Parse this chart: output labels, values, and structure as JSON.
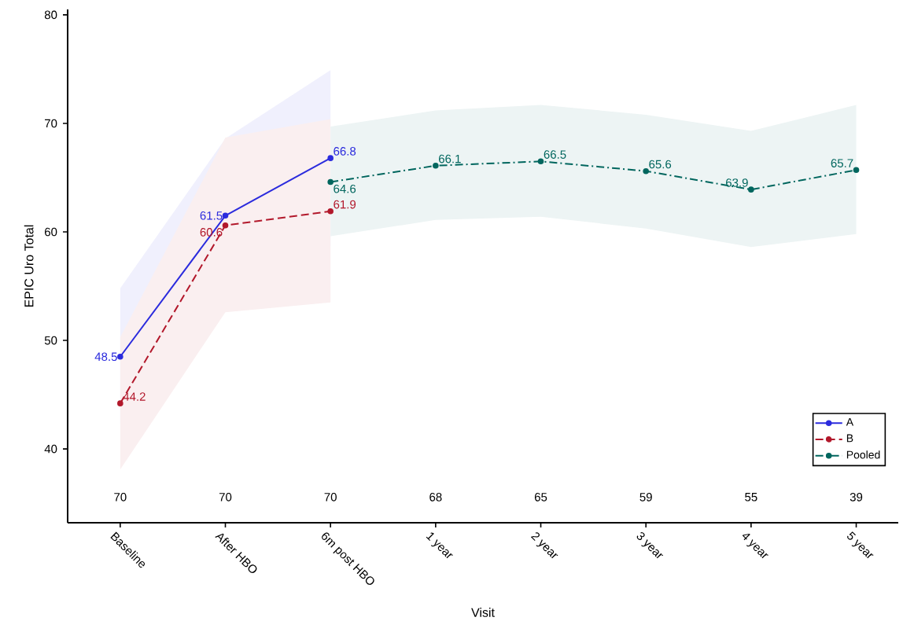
{
  "chart_data": {
    "type": "line",
    "xlabel": "Visit",
    "ylabel": "EPIC Uro Total",
    "categories": [
      "Baseline",
      "After HBO",
      "6m post HBO",
      "1 year",
      "2 year",
      "3 year",
      "4 year",
      "5 year"
    ],
    "ylim": [
      33.2,
      80.5
    ],
    "yticks": [
      40,
      50,
      60,
      70,
      80
    ],
    "series": [
      {
        "name": "A",
        "color": "#2b2bdd",
        "line_style": "solid",
        "values": [
          48.5,
          61.5,
          66.8,
          null,
          null,
          null,
          null,
          null
        ],
        "lower": [
          42.3,
          54.6,
          58.7,
          null,
          null,
          null,
          null,
          null
        ],
        "upper": [
          54.8,
          68.6,
          74.9,
          null,
          null,
          null,
          null,
          null
        ]
      },
      {
        "name": "B",
        "color": "#b2182b",
        "line_style": "dashed",
        "values": [
          44.2,
          60.6,
          61.9,
          null,
          null,
          null,
          null,
          null
        ],
        "lower": [
          38.1,
          52.6,
          53.5,
          null,
          null,
          null,
          null,
          null
        ],
        "upper": [
          50.3,
          68.7,
          70.4,
          null,
          null,
          null,
          null,
          null
        ]
      },
      {
        "name": "Pooled",
        "color": "#01665e",
        "line_style": "dashdot",
        "values": [
          null,
          null,
          64.6,
          66.1,
          66.5,
          65.6,
          63.9,
          65.7
        ],
        "lower": [
          null,
          null,
          59.6,
          61.1,
          61.4,
          60.3,
          58.6,
          59.8
        ],
        "upper": [
          null,
          null,
          69.7,
          71.2,
          71.7,
          70.8,
          69.3,
          71.7
        ]
      }
    ],
    "marker": "circle",
    "data_labels": true,
    "legend": "bottom right",
    "annotations": [
      "70",
      "70",
      "70",
      "68",
      "65",
      "59",
      "55",
      "39"
    ]
  }
}
